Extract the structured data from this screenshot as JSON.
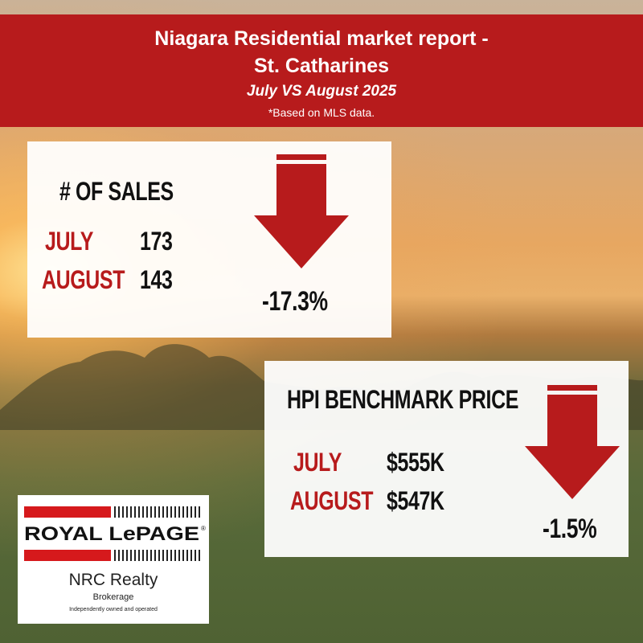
{
  "header": {
    "title_line1": "Niagara Residential market report -",
    "title_line2": "St. Catharines",
    "subtitle": "July VS August 2025",
    "note": "*Based on MLS data."
  },
  "sales_card": {
    "title": "# OF SALES",
    "july_label": "JULY",
    "july_value": "173",
    "august_label": "AUGUST",
    "august_value": "143",
    "change": "-17.3%"
  },
  "hpi_card": {
    "title": "HPI BENCHMARK PRICE",
    "july_label": "JULY",
    "july_value": "$555K",
    "august_label": "AUGUST",
    "august_value": "$547K",
    "change": "-1.5%"
  },
  "logo": {
    "brand": "ROYAL LePAGE",
    "company": "NRC Realty",
    "type": "Brokerage",
    "tagline": "Independently owned and operated"
  },
  "colors": {
    "accent_red": "#b71b1c",
    "text_dark": "#111111"
  }
}
